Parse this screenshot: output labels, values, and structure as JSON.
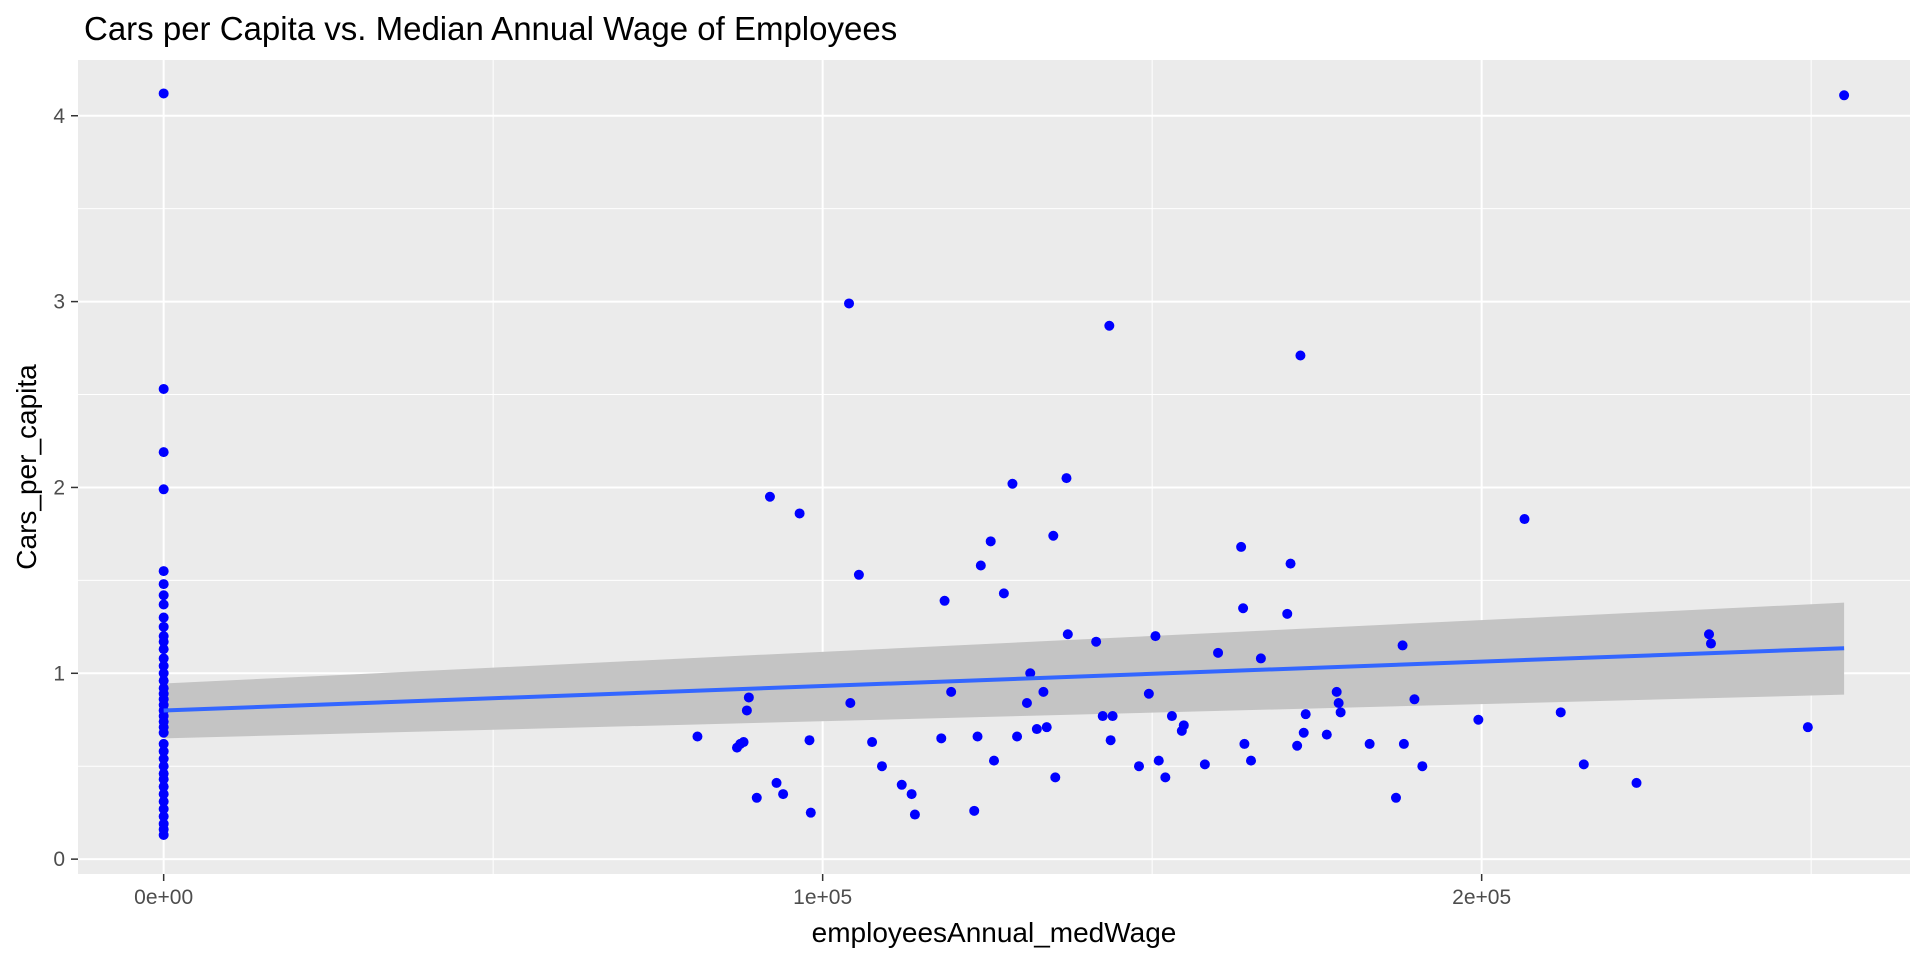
{
  "chart_data": {
    "type": "scatter",
    "title": "Cars per Capita vs. Median Annual Wage of Employees",
    "xlabel": "employeesAnnual_medWage",
    "ylabel": "Cars_per_capita",
    "xlim": [
      -13000,
      265000
    ],
    "ylim": [
      -0.08,
      4.3
    ],
    "x_ticks": [
      {
        "value": 0,
        "label": "0e+00"
      },
      {
        "value": 100000,
        "label": "1e+05"
      },
      {
        "value": 200000,
        "label": "2e+05"
      }
    ],
    "x_minor_ticks": [
      50000,
      150000,
      250000
    ],
    "y_ticks": [
      {
        "value": 0,
        "label": "0"
      },
      {
        "value": 1,
        "label": "1"
      },
      {
        "value": 2,
        "label": "2"
      },
      {
        "value": 3,
        "label": "3"
      },
      {
        "value": 4,
        "label": "4"
      }
    ],
    "y_minor_ticks": [
      0.5,
      1.5,
      2.5,
      3.5
    ],
    "grid": true,
    "panel_background": "#ebebeb",
    "point_color": "#0000ff",
    "smooth_line_color": "#3366ff",
    "ribbon_color": "#c4c4c4",
    "points": [
      [
        0,
        4.12
      ],
      [
        0,
        2.53
      ],
      [
        0,
        2.19
      ],
      [
        0,
        1.99
      ],
      [
        0,
        1.55
      ],
      [
        0,
        1.48
      ],
      [
        0,
        1.42
      ],
      [
        0,
        1.37
      ],
      [
        0,
        1.3
      ],
      [
        0,
        1.25
      ],
      [
        0,
        1.2
      ],
      [
        0,
        1.17
      ],
      [
        0,
        1.13
      ],
      [
        0,
        1.08
      ],
      [
        0,
        1.04
      ],
      [
        0,
        1.0
      ],
      [
        0,
        0.96
      ],
      [
        0,
        0.92
      ],
      [
        0,
        0.89
      ],
      [
        0,
        0.86
      ],
      [
        0,
        0.83
      ],
      [
        0,
        0.8
      ],
      [
        0,
        0.77
      ],
      [
        0,
        0.74
      ],
      [
        0,
        0.71
      ],
      [
        0,
        0.68
      ],
      [
        0,
        0.62
      ],
      [
        0,
        0.58
      ],
      [
        0,
        0.54
      ],
      [
        0,
        0.5
      ],
      [
        0,
        0.46
      ],
      [
        0,
        0.43
      ],
      [
        0,
        0.39
      ],
      [
        0,
        0.35
      ],
      [
        0,
        0.31
      ],
      [
        0,
        0.27
      ],
      [
        0,
        0.23
      ],
      [
        0,
        0.19
      ],
      [
        0,
        0.16
      ],
      [
        0,
        0.13
      ],
      [
        81000,
        0.66
      ],
      [
        87000,
        0.6
      ],
      [
        87500,
        0.62
      ],
      [
        88000,
        0.63
      ],
      [
        88500,
        0.8
      ],
      [
        88800,
        0.87
      ],
      [
        90000,
        0.33
      ],
      [
        92000,
        1.95
      ],
      [
        93000,
        0.41
      ],
      [
        94000,
        0.35
      ],
      [
        96500,
        1.86
      ],
      [
        98000,
        0.64
      ],
      [
        98200,
        0.25
      ],
      [
        104000,
        2.99
      ],
      [
        104200,
        0.84
      ],
      [
        105500,
        1.53
      ],
      [
        107500,
        0.63
      ],
      [
        109000,
        0.5
      ],
      [
        112000,
        0.4
      ],
      [
        113500,
        0.35
      ],
      [
        114000,
        0.24
      ],
      [
        118000,
        0.65
      ],
      [
        118500,
        1.39
      ],
      [
        119500,
        0.9
      ],
      [
        123000,
        0.26
      ],
      [
        123500,
        0.66
      ],
      [
        124000,
        1.58
      ],
      [
        125500,
        1.71
      ],
      [
        126000,
        0.53
      ],
      [
        127500,
        1.43
      ],
      [
        128800,
        2.02
      ],
      [
        129500,
        0.66
      ],
      [
        131000,
        0.84
      ],
      [
        131500,
        1.0
      ],
      [
        132500,
        0.7
      ],
      [
        133500,
        0.9
      ],
      [
        134000,
        0.71
      ],
      [
        135000,
        1.74
      ],
      [
        135300,
        0.44
      ],
      [
        137000,
        2.05
      ],
      [
        137200,
        1.21
      ],
      [
        141500,
        1.17
      ],
      [
        142500,
        0.77
      ],
      [
        143500,
        2.87
      ],
      [
        143700,
        0.64
      ],
      [
        144000,
        0.77
      ],
      [
        148000,
        0.5
      ],
      [
        149500,
        0.89
      ],
      [
        150500,
        1.2
      ],
      [
        151000,
        0.53
      ],
      [
        152000,
        0.44
      ],
      [
        153000,
        0.77
      ],
      [
        154500,
        0.69
      ],
      [
        154800,
        0.72
      ],
      [
        158000,
        0.51
      ],
      [
        160000,
        1.11
      ],
      [
        163500,
        1.68
      ],
      [
        163800,
        1.35
      ],
      [
        164000,
        0.62
      ],
      [
        165000,
        0.53
      ],
      [
        166500,
        1.08
      ],
      [
        170500,
        1.32
      ],
      [
        171000,
        1.59
      ],
      [
        172000,
        0.61
      ],
      [
        172500,
        2.71
      ],
      [
        173000,
        0.68
      ],
      [
        173300,
        0.78
      ],
      [
        176500,
        0.67
      ],
      [
        178000,
        0.9
      ],
      [
        178300,
        0.84
      ],
      [
        178600,
        0.79
      ],
      [
        183000,
        0.62
      ],
      [
        187000,
        0.33
      ],
      [
        188000,
        1.15
      ],
      [
        188200,
        0.62
      ],
      [
        189800,
        0.86
      ],
      [
        191000,
        0.5
      ],
      [
        199500,
        0.75
      ],
      [
        206500,
        1.83
      ],
      [
        212000,
        0.79
      ],
      [
        215500,
        0.51
      ],
      [
        223500,
        0.41
      ],
      [
        234500,
        1.21
      ],
      [
        234800,
        1.16
      ],
      [
        249500,
        0.71
      ],
      [
        255000,
        4.11
      ]
    ],
    "smooth": {
      "method": "lm",
      "x": [
        0,
        255000
      ],
      "y": [
        0.8,
        1.135
      ],
      "lower": [
        0.65,
        0.885
      ],
      "upper": [
        0.945,
        1.38
      ]
    }
  }
}
